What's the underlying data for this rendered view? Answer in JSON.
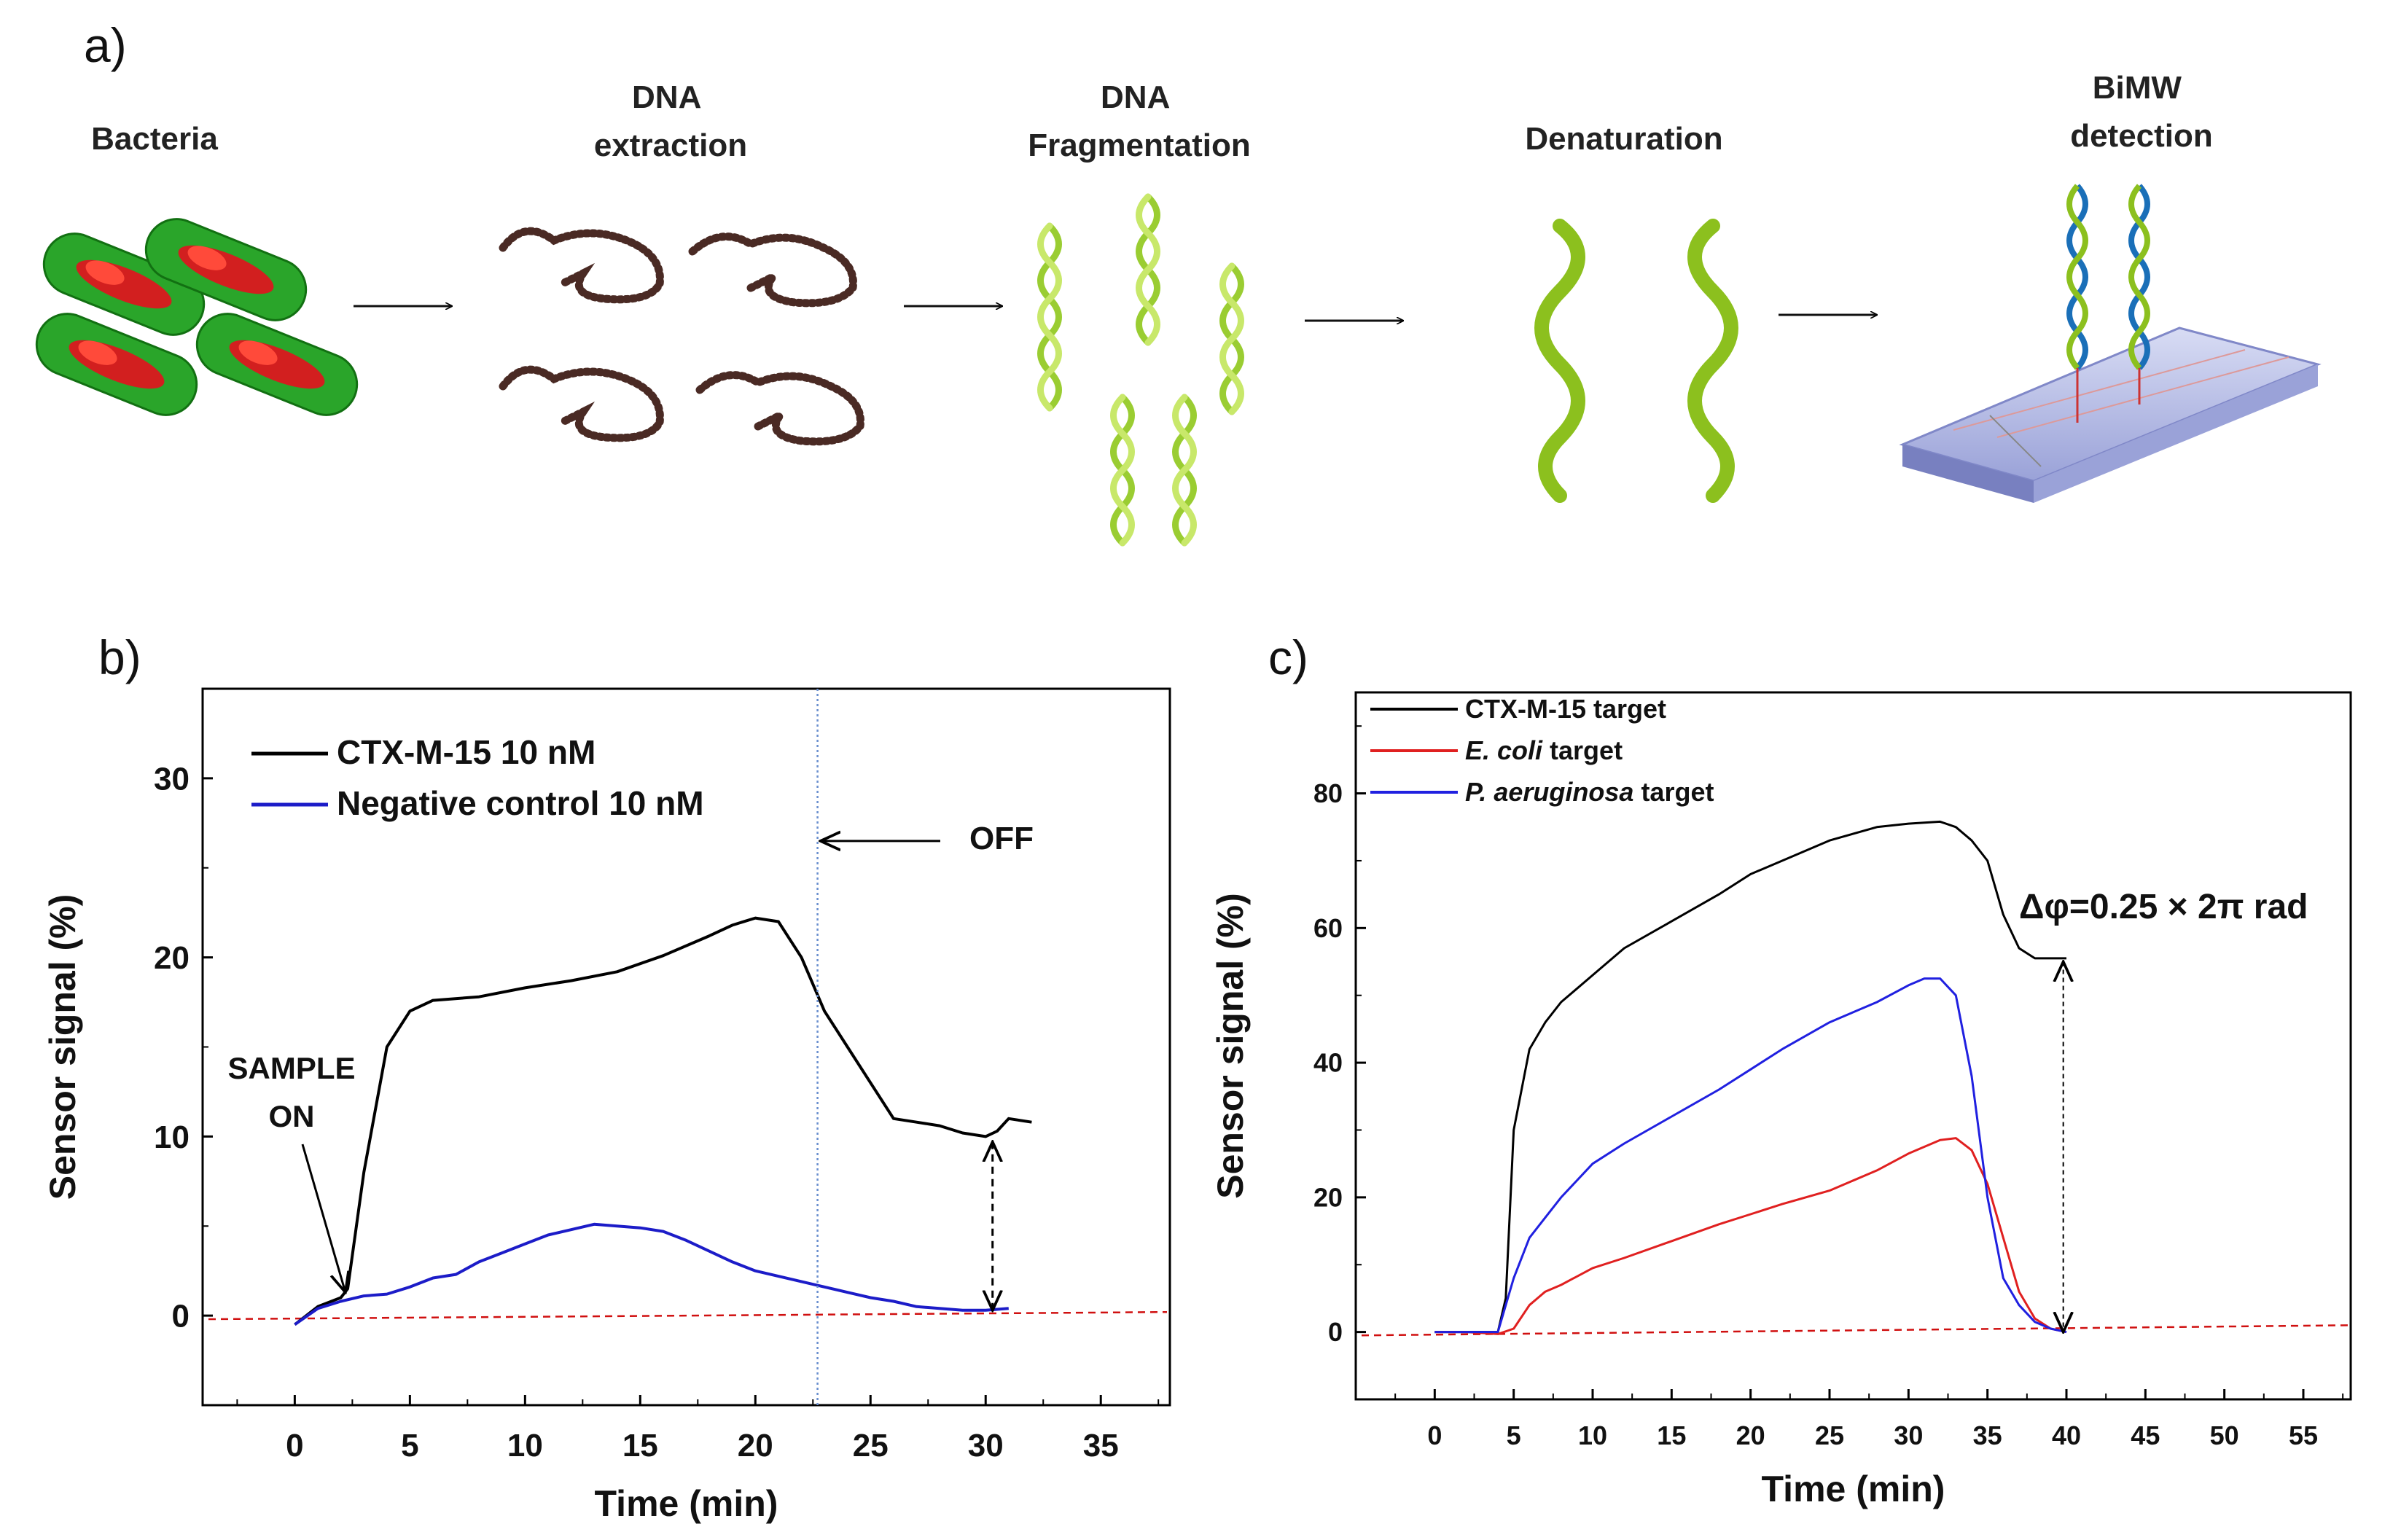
{
  "panel_a": {
    "label": "a)",
    "steps": [
      {
        "lines": [
          "Bacteria"
        ],
        "icon": "bacteria-icon"
      },
      {
        "lines": [
          "DNA",
          "extraction"
        ],
        "icon": "dna-strand-icon"
      },
      {
        "lines": [
          "DNA",
          "Fragmentation"
        ],
        "icon": "dna-fragment-icon"
      },
      {
        "lines": [
          "Denaturation"
        ],
        "icon": "single-strand-icon"
      },
      {
        "lines": [
          "BiMW",
          "detection"
        ],
        "icon": "biosensor-chip-icon"
      }
    ],
    "colors": {
      "bacteria": "#22a02a",
      "dna": "#4a2a24",
      "helix": "#9acd32",
      "chip": "#aab0e0"
    }
  },
  "chart_data": [
    {
      "panel_label": "b)",
      "type": "line",
      "xlabel": "Time (min)",
      "ylabel": "Sensor signal (%)",
      "xlim": [
        -4,
        38
      ],
      "ylim": [
        -5,
        35
      ],
      "xticks": [
        0,
        5,
        10,
        15,
        20,
        25,
        30,
        35
      ],
      "yticks": [
        0,
        10,
        20,
        30
      ],
      "legend_placement": "top-left",
      "series": [
        {
          "name": "CTX-M-15  10 nM",
          "color": "#000000",
          "x": [
            0,
            1,
            2,
            2.3,
            3,
            4,
            5,
            6,
            8,
            10,
            12,
            14,
            16,
            18,
            19,
            20,
            21,
            22,
            23,
            24,
            25,
            26,
            27,
            28,
            29,
            30,
            30.5,
            31,
            32
          ],
          "y": [
            -0.5,
            0.5,
            1,
            1.5,
            8,
            15,
            17,
            17.6,
            17.8,
            18.3,
            18.7,
            19.2,
            20.1,
            21.2,
            21.8,
            22.2,
            22,
            20,
            17,
            15,
            13,
            11,
            10.8,
            10.6,
            10.2,
            10,
            10.3,
            11,
            10.8
          ]
        },
        {
          "name": "Negative control  10 nM",
          "color": "#1c1cc8",
          "x": [
            0,
            1,
            2,
            3,
            4,
            5,
            6,
            7,
            8,
            9,
            10,
            11,
            12,
            13,
            14,
            15,
            16,
            17,
            18,
            19,
            20,
            21,
            22,
            23,
            24,
            25,
            26,
            27,
            28,
            29,
            30,
            31
          ],
          "y": [
            -0.5,
            0.4,
            0.8,
            1.1,
            1.2,
            1.6,
            2.1,
            2.3,
            3.0,
            3.5,
            4.0,
            4.5,
            4.8,
            5.1,
            5.0,
            4.9,
            4.7,
            4.2,
            3.6,
            3.0,
            2.5,
            2.2,
            1.9,
            1.6,
            1.3,
            1.0,
            0.8,
            0.5,
            0.4,
            0.3,
            0.3,
            0.4
          ]
        }
      ],
      "baseline": {
        "y_start": -0.2,
        "y_end": 0.2,
        "color": "#d01010"
      },
      "vline_x": 22.7,
      "annotations": [
        {
          "text_lines": [
            "SAMPLE",
            "ON"
          ],
          "arrow_to": [
            2.2,
            1.3
          ]
        },
        {
          "text_lines": [
            "OFF"
          ],
          "arrow_to": [
            22.7,
            26.5
          ]
        }
      ],
      "double_arrow": {
        "x": 30.3,
        "y_top": 9.7,
        "y_bottom": 0.3
      }
    },
    {
      "panel_label": "c)",
      "type": "line",
      "xlabel": "Time (min)",
      "ylabel": "Sensor signal (%)",
      "xlim": [
        -5,
        58
      ],
      "ylim": [
        -10,
        95
      ],
      "xticks": [
        0,
        5,
        10,
        15,
        20,
        25,
        30,
        35,
        40,
        45,
        50,
        55
      ],
      "yticks": [
        0,
        20,
        40,
        60,
        80
      ],
      "legend_placement": "top-left",
      "legend_entries": [
        {
          "italic": "",
          "normal": "CTX-M-15 target"
        },
        {
          "italic": "E. coli",
          "normal": " target"
        },
        {
          "italic": "P. aeruginosa",
          "normal": " target"
        }
      ],
      "series": [
        {
          "name": "CTX-M-15 target",
          "color": "#000000",
          "x": [
            0,
            2,
            4,
            4.5,
            5,
            6,
            7,
            8,
            10,
            12,
            15,
            18,
            20,
            22,
            25,
            28,
            30,
            32,
            33,
            34,
            35,
            36,
            37,
            38,
            39,
            40
          ],
          "y": [
            0,
            0,
            0,
            5,
            30,
            42,
            46,
            49,
            53,
            57,
            61,
            65,
            68,
            70,
            73,
            75,
            75.5,
            75.8,
            75,
            73,
            70,
            62,
            57,
            55.5,
            55.5,
            55.5
          ]
        },
        {
          "name": "E. coli target",
          "color": "#e02020",
          "x": [
            0,
            2,
            4,
            5,
            6,
            7,
            8,
            10,
            12,
            15,
            18,
            20,
            22,
            25,
            28,
            30,
            32,
            33,
            34,
            35,
            36,
            37,
            38,
            39,
            40
          ],
          "y": [
            0,
            0,
            -0.3,
            0.5,
            4,
            6,
            7,
            9.5,
            11,
            13.5,
            16,
            17.5,
            19,
            21,
            24,
            26.5,
            28.5,
            28.8,
            27,
            22,
            14,
            6,
            2,
            0.5,
            0
          ]
        },
        {
          "name": "P. aeruginosa target",
          "color": "#2020e0",
          "x": [
            0,
            2,
            4,
            5,
            6,
            7,
            8,
            10,
            12,
            15,
            18,
            20,
            22,
            25,
            28,
            30,
            31,
            32,
            33,
            34,
            35,
            36,
            37,
            38,
            39,
            40
          ],
          "y": [
            0,
            0,
            0,
            8,
            14,
            17,
            20,
            25,
            28,
            32,
            36,
            39,
            42,
            46,
            49,
            51.5,
            52.5,
            52.5,
            50,
            38,
            20,
            8,
            4,
            1.5,
            0.5,
            0
          ]
        }
      ],
      "baseline": {
        "y_start": -0.5,
        "y_end": 1.0,
        "color": "#d01010"
      },
      "annotation": "Δφ=0.25 × 2π rad",
      "double_arrow": {
        "x": 39.8,
        "y_top": 55,
        "y_bottom": 0
      }
    }
  ]
}
